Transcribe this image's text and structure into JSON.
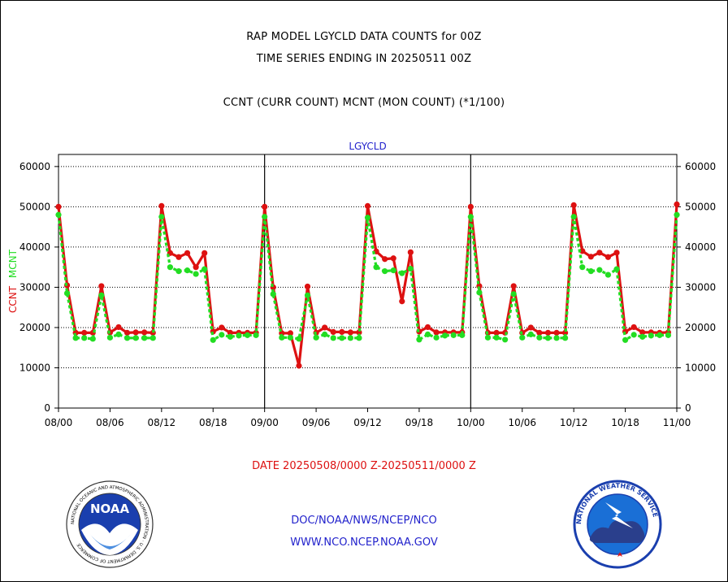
{
  "titles": {
    "line1": "RAP MODEL LGYCLD DATA COUNTS for 00Z",
    "line2": "TIME SERIES ENDING IN 20250511 00Z",
    "line3": "CCNT (CURR COUNT) MCNT (MON COUNT) (*1/100)"
  },
  "footer": {
    "date_range": "DATE 20250508/0000 Z-20250511/0000 Z",
    "org": "DOC/NOAA/NWS/NCEP/NCO",
    "url": "WWW.NCO.NCEP.NOAA.GOV"
  },
  "logos": {
    "left": {
      "name": "noaa-logo",
      "text": "NOAA",
      "ring_text": "NATIONAL OCEANIC AND ATMOSPHERIC ADMINISTRATION · U.S. DEPARTMENT OF COMMERCE"
    },
    "right": {
      "name": "nws-logo",
      "ring_text": "NATIONAL WEATHER SERVICE"
    }
  },
  "colors": {
    "ccnt": "#dd1111",
    "mcnt": "#22dd22",
    "panel_label": "#2222cc",
    "grid": "#000000"
  },
  "chart_data": {
    "type": "line",
    "panel_label": "LGYCLD",
    "ylabel_left_parts": [
      "CCNT",
      "MCNT"
    ],
    "ylim": [
      0,
      63000
    ],
    "yticks": [
      0,
      10000,
      20000,
      30000,
      40000,
      50000,
      60000
    ],
    "ytick_labels": [
      "0",
      "10000",
      "20000",
      "30000",
      "40000",
      "50000",
      "60000"
    ],
    "xlim": [
      0,
      72
    ],
    "xticks": [
      0,
      6,
      12,
      18,
      24,
      30,
      36,
      42,
      48,
      54,
      60,
      66,
      72
    ],
    "xtick_labels": [
      "08/00",
      "08/06",
      "08/12",
      "08/18",
      "09/00",
      "09/06",
      "09/12",
      "09/18",
      "10/00",
      "10/06",
      "10/12",
      "10/18",
      "11/00"
    ],
    "day_separators": [
      24,
      48
    ],
    "x": [
      0,
      1,
      2,
      3,
      4,
      5,
      6,
      7,
      8,
      9,
      10,
      11,
      12,
      13,
      14,
      15,
      16,
      17,
      18,
      19,
      20,
      21,
      22,
      23,
      24,
      25,
      26,
      27,
      28,
      29,
      30,
      31,
      32,
      33,
      34,
      35,
      36,
      37,
      38,
      39,
      40,
      41,
      42,
      43,
      44,
      45,
      46,
      47,
      48,
      49,
      50,
      51,
      52,
      53,
      54,
      55,
      56,
      57,
      58,
      59,
      60,
      61,
      62,
      63,
      64,
      65,
      66,
      67,
      68,
      69,
      70,
      71,
      72
    ],
    "series": [
      {
        "name": "CCNT",
        "values": [
          50000,
          30500,
          18700,
          18700,
          18700,
          30300,
          18800,
          20100,
          18700,
          18800,
          18800,
          18700,
          50200,
          38500,
          37500,
          38500,
          35000,
          38500,
          19000,
          20000,
          18700,
          18700,
          18700,
          18700,
          50000,
          30000,
          18600,
          18600,
          10500,
          30200,
          18700,
          20000,
          18900,
          18900,
          18800,
          18800,
          50200,
          38900,
          37000,
          37200,
          26500,
          38700,
          19000,
          20100,
          18800,
          18800,
          18800,
          18800,
          50000,
          30300,
          18700,
          18700,
          18700,
          30300,
          18700,
          20000,
          18700,
          18700,
          18700,
          18700,
          50400,
          39000,
          37600,
          38600,
          37500,
          38600,
          19000,
          20100,
          18800,
          18800,
          18700,
          18800,
          50600
        ]
      },
      {
        "name": "MCNT",
        "values": [
          48000,
          28500,
          17400,
          17400,
          17200,
          28000,
          17500,
          18300,
          17400,
          17400,
          17400,
          17400,
          47500,
          35000,
          34000,
          34200,
          33300,
          34500,
          16900,
          18200,
          17700,
          18000,
          18100,
          18100,
          47500,
          28300,
          17500,
          17500,
          17200,
          28000,
          17500,
          18300,
          17400,
          17400,
          17400,
          17400,
          47300,
          35000,
          34000,
          34200,
          33500,
          34600,
          17000,
          18300,
          17500,
          18000,
          18100,
          18100,
          47500,
          28700,
          17500,
          17500,
          17000,
          28300,
          17500,
          18300,
          17500,
          17400,
          17400,
          17400,
          47500,
          35000,
          34000,
          34300,
          33100,
          34500,
          16900,
          18200,
          17700,
          18000,
          18100,
          18100,
          48000
        ]
      }
    ]
  }
}
